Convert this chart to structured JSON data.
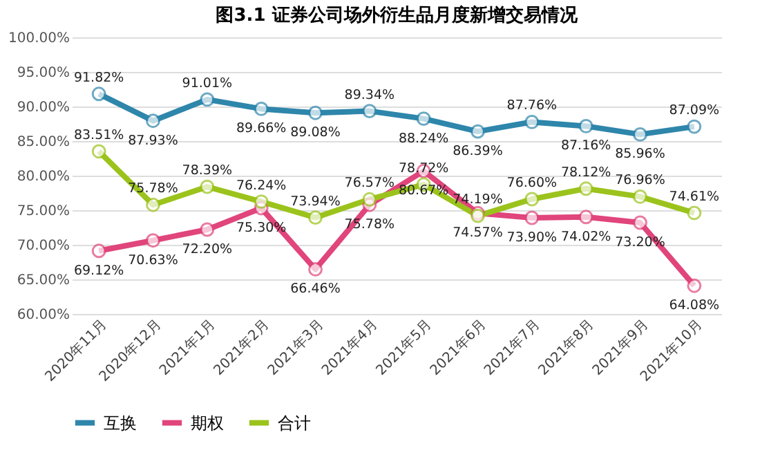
{
  "chart_data": {
    "type": "line",
    "title": "图3.1 证券公司场外衍生品月度新增交易情况",
    "categories": [
      "2020年11月",
      "2020年12月",
      "2021年1月",
      "2021年2月",
      "2021年3月",
      "2021年4月",
      "2021年5月",
      "2021年6月",
      "2021年7月",
      "2021年8月",
      "2021年9月",
      "2021年10月"
    ],
    "series": [
      {
        "name": "互换",
        "color": "#2e86ab",
        "values": [
          91.82,
          87.93,
          91.01,
          89.66,
          89.08,
          89.34,
          88.24,
          86.39,
          87.76,
          87.16,
          85.96,
          87.09
        ],
        "value_labels": [
          "91.82%",
          "87.93%",
          "91.01%",
          "89.66%",
          "89.08%",
          "89.34%",
          "88.24%",
          "86.39%",
          "87.76%",
          "87.16%",
          "85.96%",
          "87.09%"
        ]
      },
      {
        "name": "期权",
        "color": "#e0457b",
        "values": [
          69.12,
          70.63,
          72.2,
          75.3,
          66.46,
          75.78,
          80.67,
          74.57,
          73.9,
          74.02,
          73.2,
          64.08
        ],
        "value_labels": [
          "69.12%",
          "70.63%",
          "72.20%",
          "75.30%",
          "66.46%",
          "75.78%",
          "80.67%",
          "74.57%",
          "73.90%",
          "74.02%",
          "73.20%",
          "64.08%"
        ]
      },
      {
        "name": "合计",
        "color": "#9bc31c",
        "values": [
          83.51,
          75.78,
          78.39,
          76.24,
          73.94,
          76.57,
          78.72,
          74.19,
          76.6,
          78.12,
          76.96,
          74.61
        ],
        "value_labels": [
          "83.51%",
          "75.78%",
          "78.39%",
          "76.24%",
          "73.94%",
          "76.57%",
          "78.72%",
          "74.19%",
          "76.60%",
          "78.12%",
          "76.96%",
          "74.61%"
        ]
      }
    ],
    "ylim": [
      60,
      100
    ],
    "yticks": [
      {
        "value": 60,
        "label": "60.00%"
      },
      {
        "value": 65,
        "label": "65.00%"
      },
      {
        "value": 70,
        "label": "70.00%"
      },
      {
        "value": 75,
        "label": "75.00%"
      },
      {
        "value": 80,
        "label": "80.00%"
      },
      {
        "value": 85,
        "label": "85.00%"
      },
      {
        "value": 90,
        "label": "90.00%"
      },
      {
        "value": 95,
        "label": "95.00%"
      },
      {
        "value": 100,
        "label": "100.00%"
      }
    ],
    "grid": "y",
    "legend": "bottom",
    "marker": "circle",
    "line_style": "solid"
  }
}
